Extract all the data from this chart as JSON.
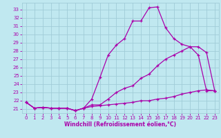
{
  "xlabel": "Windchill (Refroidissement éolien,°C)",
  "bg_color": "#c0e8f0",
  "grid_color": "#a0ccd8",
  "line_color": "#aa00aa",
  "xlim": [
    -0.5,
    23.5
  ],
  "ylim": [
    20.5,
    33.8
  ],
  "xticks": [
    0,
    1,
    2,
    3,
    4,
    5,
    6,
    7,
    8,
    9,
    10,
    11,
    12,
    13,
    14,
    15,
    16,
    17,
    18,
    19,
    20,
    21,
    22,
    23
  ],
  "yticks": [
    21,
    22,
    23,
    24,
    25,
    26,
    27,
    28,
    29,
    30,
    31,
    32,
    33
  ],
  "curve1_x": [
    0,
    1,
    2,
    3,
    4,
    5,
    6,
    7,
    8,
    9,
    10,
    11,
    12,
    13,
    14,
    15,
    16,
    17,
    18,
    19,
    20,
    21,
    22,
    23
  ],
  "curve1_y": [
    21.8,
    21.1,
    21.2,
    21.1,
    21.1,
    21.1,
    20.8,
    21.1,
    22.2,
    24.8,
    27.5,
    28.7,
    29.5,
    31.6,
    31.6,
    33.2,
    33.3,
    30.8,
    29.5,
    28.8,
    28.5,
    27.5,
    23.2,
    23.2
  ],
  "curve2_x": [
    0,
    1,
    2,
    3,
    4,
    5,
    6,
    7,
    8,
    9,
    10,
    11,
    12,
    13,
    14,
    15,
    16,
    17,
    18,
    19,
    20,
    21,
    22,
    23
  ],
  "curve2_y": [
    21.8,
    21.1,
    21.2,
    21.1,
    21.1,
    21.1,
    20.8,
    21.1,
    21.5,
    21.5,
    22.2,
    23.0,
    23.5,
    23.8,
    24.7,
    25.2,
    26.2,
    27.0,
    27.5,
    28.0,
    28.5,
    28.5,
    27.8,
    23.2
  ],
  "curve3_x": [
    0,
    1,
    2,
    3,
    4,
    5,
    6,
    7,
    8,
    9,
    10,
    11,
    12,
    13,
    14,
    15,
    16,
    17,
    18,
    19,
    20,
    21,
    22,
    23
  ],
  "curve3_y": [
    21.8,
    21.1,
    21.2,
    21.1,
    21.1,
    21.1,
    20.8,
    21.1,
    21.3,
    21.4,
    21.5,
    21.6,
    21.7,
    21.8,
    22.0,
    22.0,
    22.2,
    22.3,
    22.5,
    22.8,
    23.0,
    23.2,
    23.3,
    23.2
  ]
}
